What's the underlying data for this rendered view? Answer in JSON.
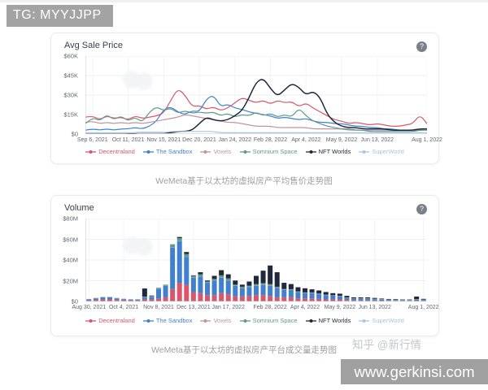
{
  "header": {
    "badge": "TG: MYYJJPP"
  },
  "watermarks": {
    "zhihu": "知乎 @新行情",
    "site": "www.gerkinsi.com"
  },
  "panels": {
    "help_glyph": "?"
  },
  "colors": {
    "header_badge_bg": "#a3a3a3",
    "site_bar_bg": "#a0a0a0",
    "decentraland": "#d9566b",
    "the_sandbox": "#4180cf",
    "voxels": "#c2939c",
    "somnium_space": "#5f9a89",
    "nft_worlds": "#20283c",
    "superworld": "#a9c6e0"
  },
  "chart_data": [
    {
      "type": "line",
      "title": "Avg Sale Price",
      "caption": "WeMeta基于以太坊的虚拟房产平均售价走势图",
      "unit": "$K",
      "ylim": [
        0,
        60
      ],
      "grid": true,
      "legend_position": "bottom",
      "ytick_labels": [
        "$60K",
        "$45K",
        "$30K",
        "$15K",
        "$0"
      ],
      "xtick_labels": [
        "Sep 6, 2021",
        "Oct 11, 2021",
        "Nov 15, 2021",
        "Dec 20, 2021",
        "Jan 24, 2022",
        "Feb 28, 2022",
        "Apr 4, 2022",
        "May 9, 2022",
        "Jun 13, 2022",
        "Aug 1, 2022"
      ],
      "xtick_indices": [
        1,
        6,
        11,
        16,
        21,
        26,
        31,
        36,
        41,
        48
      ],
      "n_points": 49,
      "series": [
        {
          "name": "Decentraland",
          "color": "#d9566b",
          "values": [
            13,
            14,
            11,
            14,
            12,
            13,
            11,
            14,
            12,
            13,
            14,
            16,
            26,
            35,
            30,
            21,
            22,
            19,
            21,
            18,
            20,
            24,
            28,
            26,
            24,
            26,
            23,
            26,
            24,
            25,
            21,
            24,
            20,
            17,
            14,
            11,
            10,
            8,
            9,
            8,
            7,
            8,
            7,
            6,
            6,
            7,
            8,
            15,
            8
          ]
        },
        {
          "name": "The Sandbox",
          "color": "#4180cf",
          "values": [
            3,
            4,
            3,
            4,
            3,
            4,
            4,
            5,
            4,
            6,
            10,
            19,
            21,
            17,
            15,
            18,
            17,
            27,
            30,
            21,
            23,
            20,
            19,
            17,
            16,
            15,
            14,
            12,
            13,
            12,
            11,
            12,
            10,
            9,
            9,
            8,
            8,
            7,
            6,
            6,
            5,
            5,
            4,
            4,
            3,
            3,
            3,
            4,
            4
          ]
        },
        {
          "name": "Voxels",
          "color": "#c2939c",
          "values": [
            9,
            10,
            8,
            9,
            8,
            9,
            8,
            9,
            8,
            9,
            10,
            11,
            12,
            13,
            15,
            14,
            13,
            12,
            11,
            10,
            9,
            9,
            8,
            7,
            6,
            6,
            6,
            5,
            5,
            5,
            5,
            5,
            4,
            4,
            4,
            4,
            4,
            3,
            3,
            3,
            3,
            3,
            3,
            3,
            3,
            3,
            3,
            3,
            3
          ]
        },
        {
          "name": "Somnium Space",
          "color": "#5f9a89",
          "values": [
            8,
            13,
            10,
            15,
            11,
            14,
            10,
            13,
            9,
            17,
            21,
            18,
            20,
            16,
            18,
            16,
            17,
            16,
            17,
            14,
            16,
            13,
            15,
            14,
            17,
            14,
            16,
            13,
            15,
            13,
            20,
            14,
            10,
            8,
            6,
            5,
            4,
            4,
            3,
            3,
            2,
            2,
            2,
            2,
            2,
            2,
            2,
            3,
            3
          ]
        },
        {
          "name": "NFT Worlds",
          "color": "#20283c",
          "values": [
            0,
            0,
            0,
            0,
            0,
            0,
            0,
            1,
            1,
            1,
            1,
            1,
            1,
            2,
            2,
            3,
            8,
            13,
            11,
            10,
            11,
            14,
            18,
            28,
            40,
            43,
            35,
            29,
            34,
            39,
            36,
            30,
            33,
            28,
            15,
            9,
            6,
            5,
            5,
            4,
            4,
            4,
            4,
            3,
            3,
            3,
            3,
            4,
            4
          ]
        },
        {
          "name": "SuperWorld",
          "color": "#a9c6e0",
          "values": [
            1,
            1,
            1,
            1,
            1,
            1,
            1,
            1,
            1,
            1,
            1,
            1,
            2,
            2,
            2,
            2,
            2,
            2,
            2,
            1,
            1,
            1,
            1,
            1,
            1,
            1,
            1,
            1,
            1,
            1,
            1,
            1,
            1,
            1,
            1,
            1,
            1,
            1,
            1,
            1,
            1,
            1,
            1,
            1,
            1,
            1,
            1,
            1,
            1
          ]
        }
      ]
    },
    {
      "type": "bar",
      "stacked": true,
      "title": "Volume",
      "caption": "WeMeta基于以太坊的虚拟房产平台成交量走势图",
      "unit": "$M",
      "ylim": [
        0,
        80
      ],
      "grid": true,
      "legend_position": "bottom",
      "ytick_labels": [
        "$80M",
        "$60M",
        "$40M",
        "$20M",
        "$0"
      ],
      "xtick_labels": [
        "Aug 30, 2021",
        "Oct 4, 2021",
        "Nov 8, 2021",
        "Dec 13, 2021",
        "Jan 17, 2022",
        "Feb 28, 2022",
        "Apr 4, 2022",
        "May 9, 2022",
        "Jun 13, 2022",
        "Aug 1, 2022"
      ],
      "xtick_indices": [
        0,
        5,
        10,
        15,
        20,
        26,
        31,
        36,
        41,
        48
      ],
      "n_points": 49,
      "series": [
        {
          "name": "Decentraland",
          "color": "#d9566b",
          "values": [
            1,
            1.5,
            2,
            2,
            1.5,
            1.2,
            1,
            1,
            2,
            2,
            3,
            4,
            12,
            18,
            16,
            9,
            8,
            6,
            6,
            8,
            7,
            5,
            5,
            5,
            6,
            6,
            5,
            4,
            4,
            4,
            3,
            3,
            3,
            2.5,
            2,
            2,
            2,
            1.5,
            1,
            1,
            1,
            1,
            0.8,
            0.7,
            0.6,
            0.5,
            0.5,
            0.8,
            0.7
          ]
        },
        {
          "name": "The Sandbox",
          "color": "#4180cf",
          "values": [
            1,
            1.5,
            2,
            2,
            1.5,
            1,
            0.8,
            0.8,
            2,
            2.5,
            9,
            11,
            40,
            40,
            27,
            14,
            16,
            12,
            14,
            15,
            13,
            10,
            8,
            9,
            9,
            10,
            10,
            9,
            7,
            7,
            6,
            5,
            5,
            4.5,
            4,
            3.5,
            3,
            2,
            1.5,
            1.5,
            1.5,
            1.2,
            1,
            0.8,
            0.8,
            0.6,
            0.6,
            1,
            0.8
          ]
        },
        {
          "name": "Voxels",
          "color": "#c2939c",
          "values": [
            0.2,
            0.2,
            0.2,
            0.2,
            0.2,
            0.2,
            0.2,
            0.2,
            0.2,
            0.2,
            0.2,
            0.2,
            0.2,
            0.2,
            0.2,
            0.2,
            0.2,
            0.2,
            0.2,
            0.2,
            0.2,
            0.2,
            0.2,
            0.2,
            0.2,
            0.2,
            0.2,
            0.2,
            0.2,
            0.2,
            0.2,
            0.2,
            0.2,
            0.2,
            0.2,
            0.2,
            0.2,
            0.2,
            0.2,
            0.2,
            0.2,
            0.2,
            0.2,
            0.2,
            0.2,
            0.2,
            0.2,
            0.2,
            0.2
          ]
        },
        {
          "name": "Somnium Space",
          "color": "#5f9a89",
          "values": [
            0.2,
            0.2,
            0.2,
            0.2,
            0.2,
            0.2,
            0.2,
            0.2,
            0.3,
            0.5,
            1,
            1,
            3,
            3,
            2.5,
            1.5,
            2,
            1,
            1.5,
            2,
            2,
            1,
            1,
            1,
            1.5,
            1.5,
            1.5,
            1,
            0.8,
            0.6,
            0.5,
            0.5,
            0.5,
            0.4,
            0.4,
            0.3,
            0.3,
            0.2,
            0.2,
            0.2,
            0.2,
            0.2,
            0.2,
            0.2,
            0.2,
            0.2,
            0.2,
            0.2,
            0.2
          ]
        },
        {
          "name": "NFT Worlds",
          "color": "#20283c",
          "values": [
            0,
            0,
            0,
            0,
            0,
            0,
            0,
            0,
            8,
            0.5,
            0,
            0,
            0,
            1,
            2,
            0.5,
            2,
            1,
            3,
            5,
            4,
            4,
            2,
            4,
            8,
            12,
            18,
            14,
            6,
            5,
            4,
            4,
            3,
            3,
            2.5,
            2,
            2,
            1.5,
            1,
            1,
            1,
            0.8,
            0.6,
            0.5,
            0.5,
            0.4,
            0.4,
            2.5,
            0.6
          ]
        },
        {
          "name": "SuperWorld",
          "color": "#a9c6e0",
          "values": [
            0.1,
            0.1,
            0.1,
            0.1,
            0.1,
            0.1,
            0.1,
            0.1,
            0.1,
            0.1,
            0.1,
            0.1,
            0.1,
            0.1,
            0.1,
            0.1,
            0.1,
            0.1,
            0.1,
            0.1,
            0.1,
            0.1,
            0.1,
            0.1,
            0.1,
            0.1,
            0.1,
            0.1,
            0.1,
            0.1,
            0.1,
            0.1,
            0.1,
            0.1,
            0.1,
            0.1,
            0.1,
            0.1,
            0.1,
            0.1,
            0.1,
            0.1,
            0.1,
            0.1,
            0.1,
            0.1,
            0.1,
            0.1,
            0.1
          ]
        }
      ]
    }
  ]
}
